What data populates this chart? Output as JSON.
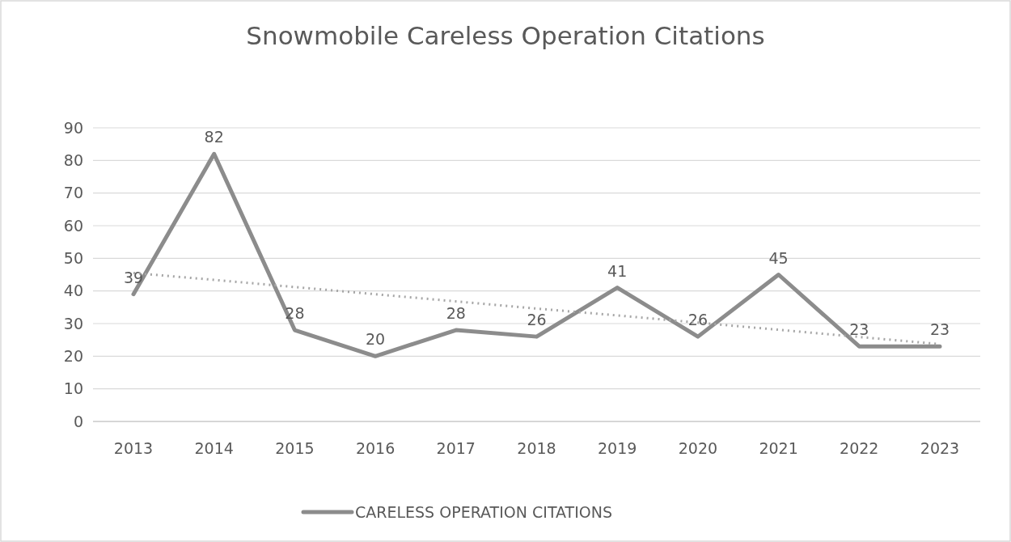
{
  "chart_data": {
    "type": "line",
    "title": "Snowmobile Careless Operation Citations",
    "categories": [
      "2013",
      "2014",
      "2015",
      "2016",
      "2017",
      "2018",
      "2019",
      "2020",
      "2021",
      "2022",
      "2023"
    ],
    "series": [
      {
        "name": "CARELESS OPERATION CITATIONS",
        "color": "#8c8c8c",
        "values": [
          39,
          82,
          28,
          20,
          28,
          26,
          41,
          26,
          45,
          23,
          23
        ]
      },
      {
        "type": "line",
        "color": "#a6a6a6",
        "values": [
          45.5,
          43.4,
          41.2,
          39.0,
          36.8,
          34.6,
          32.5,
          30.3,
          28.1,
          25.9,
          23.7
        ],
        "line_style": "dotted",
        "data_labels": false
      }
    ],
    "ylim": [
      0,
      90
    ],
    "yticks": [
      0,
      10,
      20,
      30,
      40,
      50,
      60,
      70,
      80,
      90
    ],
    "grid": "y",
    "legend": "bottom",
    "data_labels": true,
    "marker": "none"
  }
}
